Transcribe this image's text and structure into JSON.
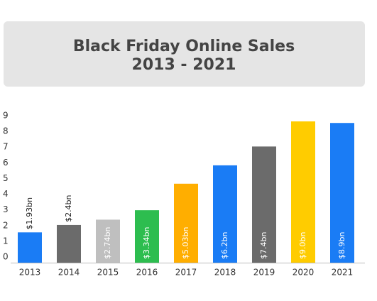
{
  "chart_data": {
    "type": "bar",
    "title": "Black Friday Online Sales",
    "subtitle": "2013 - 2021",
    "categories": [
      "2013",
      "2014",
      "2015",
      "2016",
      "2017",
      "2018",
      "2019",
      "2020",
      "2021"
    ],
    "values": [
      1.93,
      2.4,
      2.74,
      3.34,
      5.03,
      6.2,
      7.4,
      9.0,
      8.9
    ],
    "value_labels": [
      "$1.93bn",
      "$2.4bn",
      "$2.74bn",
      "$3.34bn",
      "$5.03bn",
      "$6.2bn",
      "$7.4bn",
      "$9.0bn",
      "$8.9bn"
    ],
    "colors": [
      "#1a7cf5",
      "#6b6b6b",
      "#bfbfbf",
      "#2dbd4f",
      "#ffae00",
      "#1a7cf5",
      "#6b6b6b",
      "#ffcc00",
      "#1a7cf5"
    ],
    "ylim": [
      0,
      9
    ],
    "yticks": [
      0,
      1,
      2,
      3,
      4,
      5,
      6,
      7,
      8,
      9
    ],
    "grid": false
  }
}
